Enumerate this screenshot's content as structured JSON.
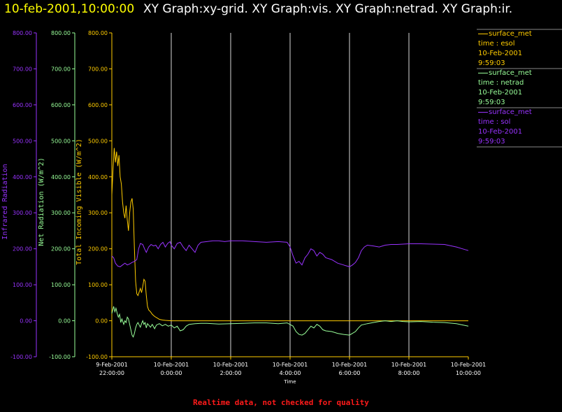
{
  "title": {
    "timestamp": "10-feb-2001,10:00:00",
    "graphs": "XY Graph:xy-grid.  XY Graph:vis.  XY Graph:netrad.  XY Graph:ir."
  },
  "footer_note": "Realtime data, not checked for quality",
  "colors": {
    "ir": "#9933ff",
    "netrad": "#99ff99",
    "vis": "#ffcc00",
    "grid": "#d8d8d8",
    "note": "#ff1a1a"
  },
  "chart_data": {
    "type": "line",
    "xlabel": "Time",
    "x_ticks": [
      {
        "x": -1.0,
        "label1": "9-Feb-2001",
        "label2": "22:00:00"
      },
      {
        "x": 0.0,
        "label1": "10-Feb-2001",
        "label2": "0:00:00"
      },
      {
        "x": 1.0,
        "label1": "10-Feb-2001",
        "label2": "2:00:00"
      },
      {
        "x": 2.0,
        "label1": "10-Feb-2001",
        "label2": "4:00:00"
      },
      {
        "x": 3.0,
        "label1": "10-Feb-2001",
        "label2": "6:00:00"
      },
      {
        "x": 4.0,
        "label1": "10-Feb-2001",
        "label2": "8:00:00"
      },
      {
        "x": 5.0,
        "label1": "10-Feb-2001",
        "label2": "10:00:00"
      }
    ],
    "axes": [
      {
        "id": "ir",
        "label": "Infrared Radiation",
        "ylim": [
          -100,
          800
        ],
        "ticks": [
          "-100.00",
          "0.00",
          "100.00",
          "200.00",
          "300.00",
          "400.00",
          "500.00",
          "600.00",
          "700.00",
          "800.00"
        ]
      },
      {
        "id": "netrad",
        "label": "Net Radiation (W/m^2)",
        "ylim": [
          -100,
          800
        ],
        "ticks": [
          "-100.00",
          "0.00",
          "100.00",
          "200.00",
          "300.00",
          "400.00",
          "500.00",
          "600.00",
          "700.00",
          "800.00"
        ]
      },
      {
        "id": "vis",
        "label": "Total Incoming Visible (W/m^2)",
        "ylim": [
          -100,
          800
        ],
        "ticks": [
          "-100.00",
          "0.00",
          "100.00",
          "200.00",
          "300.00",
          "400.00",
          "500.00",
          "600.00",
          "700.00",
          "800.00"
        ]
      }
    ],
    "legend": [
      {
        "series": "surface_met",
        "line2": "time : esol",
        "line3": "10-Feb-2001",
        "line4": "9:59:03",
        "color": "#ffcc00"
      },
      {
        "series": "surface_met",
        "line2": "time : netrad",
        "line3": "10-Feb-2001",
        "line4": "9:59:03",
        "color": "#99ff99"
      },
      {
        "series": "surface_met",
        "line2": "time : sol",
        "line3": "10-Feb-2001",
        "line4": "9:59:03",
        "color": "#9933ff"
      }
    ],
    "series": [
      {
        "id": "vis",
        "color": "#ffcc00",
        "points": [
          [
            -1.0,
            350
          ],
          [
            -0.98,
            420
          ],
          [
            -0.96,
            480
          ],
          [
            -0.94,
            440
          ],
          [
            -0.92,
            470
          ],
          [
            -0.9,
            430
          ],
          [
            -0.88,
            460
          ],
          [
            -0.86,
            400
          ],
          [
            -0.84,
            380
          ],
          [
            -0.82,
            330
          ],
          [
            -0.8,
            300
          ],
          [
            -0.78,
            285
          ],
          [
            -0.76,
            320
          ],
          [
            -0.74,
            280
          ],
          [
            -0.72,
            250
          ],
          [
            -0.7,
            300
          ],
          [
            -0.68,
            330
          ],
          [
            -0.66,
            340
          ],
          [
            -0.64,
            310
          ],
          [
            -0.62,
            200
          ],
          [
            -0.6,
            110
          ],
          [
            -0.58,
            75
          ],
          [
            -0.56,
            70
          ],
          [
            -0.54,
            80
          ],
          [
            -0.52,
            90
          ],
          [
            -0.5,
            78
          ],
          [
            -0.48,
            95
          ],
          [
            -0.46,
            115
          ],
          [
            -0.44,
            110
          ],
          [
            -0.42,
            70
          ],
          [
            -0.4,
            40
          ],
          [
            -0.38,
            30
          ],
          [
            -0.35,
            25
          ],
          [
            -0.32,
            18
          ],
          [
            -0.28,
            12
          ],
          [
            -0.24,
            8
          ],
          [
            -0.2,
            4
          ],
          [
            -0.15,
            2
          ],
          [
            -0.1,
            1
          ],
          [
            0.0,
            0
          ],
          [
            0.5,
            0
          ],
          [
            1.0,
            0
          ],
          [
            1.5,
            0
          ],
          [
            2.0,
            0
          ],
          [
            2.5,
            0
          ],
          [
            3.0,
            0
          ],
          [
            3.5,
            0
          ],
          [
            4.0,
            0
          ],
          [
            4.5,
            0
          ],
          [
            5.0,
            0
          ]
        ]
      },
      {
        "id": "netrad",
        "color": "#99ff99",
        "points": [
          [
            -1.0,
            20
          ],
          [
            -0.97,
            40
          ],
          [
            -0.95,
            25
          ],
          [
            -0.93,
            35
          ],
          [
            -0.91,
            20
          ],
          [
            -0.89,
            10
          ],
          [
            -0.87,
            18
          ],
          [
            -0.85,
            -5
          ],
          [
            -0.83,
            5
          ],
          [
            -0.8,
            -10
          ],
          [
            -0.78,
            0
          ],
          [
            -0.76,
            -5
          ],
          [
            -0.74,
            10
          ],
          [
            -0.72,
            5
          ],
          [
            -0.7,
            -10
          ],
          [
            -0.68,
            -25
          ],
          [
            -0.66,
            -40
          ],
          [
            -0.64,
            -45
          ],
          [
            -0.62,
            -35
          ],
          [
            -0.6,
            -20
          ],
          [
            -0.58,
            -10
          ],
          [
            -0.56,
            -5
          ],
          [
            -0.54,
            -12
          ],
          [
            -0.52,
            -18
          ],
          [
            -0.5,
            -8
          ],
          [
            -0.48,
            0
          ],
          [
            -0.46,
            -10
          ],
          [
            -0.44,
            -5
          ],
          [
            -0.42,
            -20
          ],
          [
            -0.4,
            -8
          ],
          [
            -0.38,
            -12
          ],
          [
            -0.35,
            -18
          ],
          [
            -0.32,
            -10
          ],
          [
            -0.28,
            -22
          ],
          [
            -0.25,
            -12
          ],
          [
            -0.2,
            -8
          ],
          [
            -0.15,
            -14
          ],
          [
            -0.1,
            -10
          ],
          [
            -0.05,
            -15
          ],
          [
            0.0,
            -12
          ],
          [
            0.05,
            -20
          ],
          [
            0.1,
            -15
          ],
          [
            0.15,
            -28
          ],
          [
            0.2,
            -25
          ],
          [
            0.25,
            -15
          ],
          [
            0.3,
            -10
          ],
          [
            0.4,
            -8
          ],
          [
            0.5,
            -7
          ],
          [
            0.6,
            -7
          ],
          [
            0.7,
            -8
          ],
          [
            0.8,
            -9
          ],
          [
            1.0,
            -8
          ],
          [
            1.2,
            -7
          ],
          [
            1.4,
            -6
          ],
          [
            1.6,
            -6
          ],
          [
            1.8,
            -8
          ],
          [
            1.95,
            -6
          ],
          [
            2.05,
            -15
          ],
          [
            2.1,
            -30
          ],
          [
            2.15,
            -38
          ],
          [
            2.2,
            -40
          ],
          [
            2.25,
            -35
          ],
          [
            2.3,
            -25
          ],
          [
            2.35,
            -15
          ],
          [
            2.4,
            -20
          ],
          [
            2.45,
            -10
          ],
          [
            2.5,
            -15
          ],
          [
            2.55,
            -25
          ],
          [
            2.6,
            -28
          ],
          [
            2.7,
            -30
          ],
          [
            2.8,
            -35
          ],
          [
            2.9,
            -38
          ],
          [
            3.0,
            -40
          ],
          [
            3.05,
            -35
          ],
          [
            3.1,
            -30
          ],
          [
            3.15,
            -20
          ],
          [
            3.2,
            -12
          ],
          [
            3.3,
            -8
          ],
          [
            3.4,
            -5
          ],
          [
            3.5,
            -2
          ],
          [
            3.6,
            0
          ],
          [
            3.7,
            -2
          ],
          [
            3.8,
            0
          ],
          [
            3.9,
            -2
          ],
          [
            4.0,
            -3
          ],
          [
            4.2,
            -2
          ],
          [
            4.4,
            -4
          ],
          [
            4.6,
            -5
          ],
          [
            4.8,
            -8
          ],
          [
            5.0,
            -15
          ]
        ]
      },
      {
        "id": "ir",
        "color": "#9933ff",
        "points": [
          [
            -1.0,
            180
          ],
          [
            -0.97,
            175
          ],
          [
            -0.94,
            160
          ],
          [
            -0.9,
            152
          ],
          [
            -0.86,
            150
          ],
          [
            -0.82,
            155
          ],
          [
            -0.78,
            160
          ],
          [
            -0.74,
            155
          ],
          [
            -0.7,
            158
          ],
          [
            -0.66,
            162
          ],
          [
            -0.62,
            165
          ],
          [
            -0.58,
            170
          ],
          [
            -0.55,
            200
          ],
          [
            -0.52,
            215
          ],
          [
            -0.48,
            212
          ],
          [
            -0.45,
            200
          ],
          [
            -0.42,
            190
          ],
          [
            -0.38,
            205
          ],
          [
            -0.34,
            212
          ],
          [
            -0.3,
            208
          ],
          [
            -0.26,
            210
          ],
          [
            -0.22,
            200
          ],
          [
            -0.18,
            212
          ],
          [
            -0.14,
            218
          ],
          [
            -0.1,
            205
          ],
          [
            -0.06,
            215
          ],
          [
            -0.02,
            220
          ],
          [
            0.0,
            210
          ],
          [
            0.05,
            200
          ],
          [
            0.1,
            215
          ],
          [
            0.15,
            218
          ],
          [
            0.2,
            205
          ],
          [
            0.25,
            195
          ],
          [
            0.3,
            210
          ],
          [
            0.35,
            200
          ],
          [
            0.4,
            190
          ],
          [
            0.45,
            210
          ],
          [
            0.5,
            218
          ],
          [
            0.6,
            220
          ],
          [
            0.7,
            222
          ],
          [
            0.8,
            222
          ],
          [
            0.9,
            220
          ],
          [
            1.0,
            222
          ],
          [
            1.2,
            222
          ],
          [
            1.4,
            220
          ],
          [
            1.6,
            218
          ],
          [
            1.8,
            220
          ],
          [
            1.95,
            218
          ],
          [
            2.0,
            205
          ],
          [
            2.05,
            180
          ],
          [
            2.1,
            160
          ],
          [
            2.15,
            165
          ],
          [
            2.2,
            155
          ],
          [
            2.25,
            175
          ],
          [
            2.3,
            185
          ],
          [
            2.35,
            200
          ],
          [
            2.4,
            195
          ],
          [
            2.45,
            180
          ],
          [
            2.5,
            190
          ],
          [
            2.55,
            185
          ],
          [
            2.6,
            175
          ],
          [
            2.7,
            170
          ],
          [
            2.8,
            160
          ],
          [
            2.9,
            155
          ],
          [
            3.0,
            150
          ],
          [
            3.05,
            155
          ],
          [
            3.1,
            162
          ],
          [
            3.15,
            175
          ],
          [
            3.2,
            195
          ],
          [
            3.25,
            205
          ],
          [
            3.3,
            210
          ],
          [
            3.4,
            208
          ],
          [
            3.5,
            205
          ],
          [
            3.6,
            210
          ],
          [
            3.7,
            212
          ],
          [
            3.8,
            212
          ],
          [
            3.9,
            213
          ],
          [
            4.0,
            214
          ],
          [
            4.2,
            214
          ],
          [
            4.4,
            213
          ],
          [
            4.6,
            212
          ],
          [
            4.8,
            205
          ],
          [
            4.9,
            200
          ],
          [
            5.0,
            195
          ]
        ]
      }
    ]
  }
}
